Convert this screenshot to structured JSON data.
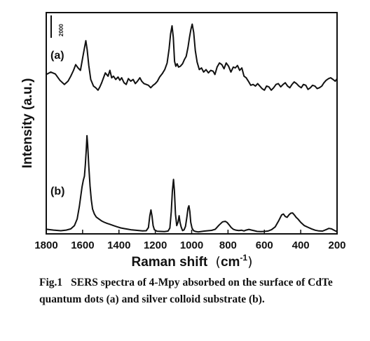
{
  "chart_data": {
    "type": "line",
    "xlabel": "Raman shift",
    "xlabel_unit_base": "cm",
    "xlabel_unit_exp": "-1",
    "ylabel": "Intensity (a.u.)",
    "x_reversed": true,
    "xlim": [
      1800,
      200
    ],
    "x_ticks": [
      1800,
      1600,
      1400,
      1200,
      1000,
      800,
      600,
      400,
      200
    ],
    "scale_bar_label": "2000",
    "series": [
      {
        "name": "(a)",
        "x": [
          1800,
          1775,
          1750,
          1725,
          1700,
          1680,
          1665,
          1650,
          1638,
          1625,
          1612,
          1600,
          1590,
          1582,
          1575,
          1566,
          1555,
          1540,
          1528,
          1515,
          1505,
          1495,
          1485,
          1475,
          1460,
          1450,
          1440,
          1430,
          1418,
          1405,
          1395,
          1385,
          1372,
          1360,
          1348,
          1335,
          1322,
          1310,
          1298,
          1285,
          1275,
          1262,
          1250,
          1238,
          1225,
          1212,
          1200,
          1188,
          1176,
          1162,
          1148,
          1135,
          1124,
          1116,
          1108,
          1101,
          1094,
          1087,
          1080,
          1072,
          1062,
          1050,
          1040,
          1030,
          1020,
          1012,
          1004,
          997,
          989,
          980,
          970,
          958,
          946,
          934,
          921,
          908,
          895,
          882,
          872,
          860,
          847,
          834,
          822,
          810,
          797,
          784,
          771,
          760,
          748,
          736,
          724,
          712,
          700,
          688,
          675,
          662,
          649,
          637,
          625,
          613,
          600,
          588,
          575,
          562,
          549,
          536,
          523,
          510,
          497,
          485,
          472,
          460,
          448,
          436,
          423,
          410,
          397,
          385,
          372,
          360,
          347,
          335,
          322,
          310,
          297,
          284,
          272,
          260,
          247,
          235,
          222,
          210,
          200
        ],
        "y": [
          9650,
          9800,
          9680,
          9300,
          9050,
          9250,
          9550,
          9900,
          10250,
          10050,
          9900,
          10650,
          11250,
          11700,
          11150,
          10200,
          9350,
          8950,
          8850,
          8700,
          8900,
          9150,
          9450,
          9750,
          9550,
          9900,
          9450,
          9550,
          9350,
          9500,
          9300,
          9450,
          9150,
          9050,
          9400,
          9250,
          9350,
          9100,
          9250,
          9450,
          9250,
          9100,
          9050,
          9000,
          8850,
          9000,
          9100,
          9250,
          9500,
          9700,
          9950,
          10350,
          11200,
          12100,
          12600,
          11900,
          10450,
          10150,
          10300,
          10100,
          10150,
          10300,
          10550,
          10750,
          11300,
          11900,
          12400,
          12700,
          12200,
          11100,
          10400,
          9950,
          10050,
          9800,
          9950,
          9750,
          9900,
          9850,
          9650,
          10100,
          10350,
          10250,
          10000,
          10350,
          10150,
          9800,
          10100,
          10050,
          10200,
          9900,
          10050,
          9550,
          9450,
          9250,
          9000,
          9050,
          8950,
          9100,
          8950,
          8800,
          8700,
          8950,
          8900,
          8700,
          8850,
          9050,
          9100,
          8900,
          9050,
          9150,
          8950,
          8850,
          9050,
          9200,
          9100,
          8950,
          8850,
          9050,
          9000,
          8750,
          8850,
          9000,
          8950,
          8800,
          8850,
          8950,
          9150,
          9300,
          9400,
          9450,
          9350,
          9250,
          9400
        ]
      },
      {
        "name": "(b)",
        "x": [
          1800,
          1760,
          1720,
          1690,
          1665,
          1645,
          1630,
          1618,
          1610,
          1603,
          1596,
          1590,
          1585,
          1580,
          1576,
          1572,
          1566,
          1559,
          1552,
          1545,
          1535,
          1525,
          1510,
          1495,
          1480,
          1465,
          1450,
          1430,
          1410,
          1390,
          1370,
          1350,
          1330,
          1310,
          1290,
          1270,
          1250,
          1238,
          1230,
          1224,
          1218,
          1212,
          1205,
          1190,
          1170,
          1150,
          1130,
          1120,
          1112,
          1106,
          1100,
          1095,
          1089,
          1082,
          1075,
          1069,
          1064,
          1058,
          1050,
          1042,
          1034,
          1026,
          1020,
          1015,
          1010,
          1005,
          998,
          990,
          980,
          965,
          950,
          930,
          910,
          890,
          870,
          850,
          830,
          815,
          805,
          795,
          782,
          770,
          755,
          740,
          725,
          712,
          700,
          685,
          670,
          655,
          640,
          620,
          600,
          580,
          560,
          540,
          520,
          505,
          495,
          485,
          475,
          465,
          455,
          445,
          435,
          425,
          415,
          400,
          380,
          360,
          340,
          320,
          300,
          280,
          260,
          245,
          230,
          215,
          200
        ],
        "y": [
          280,
          230,
          190,
          230,
          300,
          500,
          900,
          1650,
          2300,
          2850,
          3250,
          3500,
          4200,
          5100,
          5950,
          5400,
          4100,
          2900,
          2050,
          1500,
          1200,
          1020,
          900,
          780,
          700,
          630,
          580,
          500,
          430,
          360,
          320,
          280,
          240,
          220,
          200,
          180,
          190,
          380,
          1100,
          1450,
          1050,
          500,
          250,
          160,
          150,
          140,
          170,
          350,
          1350,
          2600,
          3300,
          2600,
          1200,
          500,
          700,
          1100,
          700,
          420,
          200,
          240,
          450,
          1050,
          1550,
          1700,
          1350,
          700,
          350,
          200,
          150,
          120,
          140,
          170,
          190,
          210,
          280,
          520,
          730,
          760,
          690,
          560,
          380,
          270,
          220,
          200,
          220,
          180,
          230,
          270,
          230,
          190,
          150,
          140,
          150,
          170,
          260,
          430,
          820,
          1150,
          1200,
          1050,
          1000,
          1150,
          1250,
          1270,
          1150,
          1000,
          900,
          700,
          500,
          400,
          300,
          220,
          180,
          170,
          260,
          330,
          300,
          210,
          130
        ]
      }
    ]
  },
  "caption": {
    "fig_number": "Fig.1",
    "text": "SERS spectra of 4-Mpy absorbed on the surface of CdTe quantum dots (a) and silver colloid substrate (b)."
  }
}
